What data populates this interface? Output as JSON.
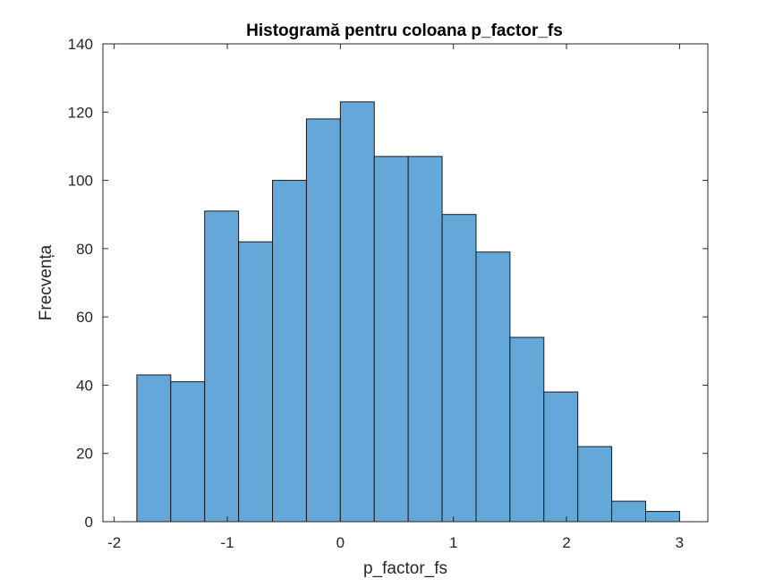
{
  "chart_data": {
    "type": "bar",
    "title": "Histogramă pentru coloana p_factor_fs",
    "xlabel": "p_factor_fs",
    "ylabel": "Frecvența",
    "xlim": [
      -2.1,
      3.25
    ],
    "ylim": [
      0,
      140
    ],
    "xticks": [
      -2,
      -1,
      0,
      1,
      2,
      3
    ],
    "yticks": [
      0,
      20,
      40,
      60,
      80,
      100,
      120,
      140
    ],
    "bin_edges": [
      -1.8,
      -1.5,
      -1.2,
      -0.9,
      -0.6,
      -0.3,
      0.0,
      0.3,
      0.6,
      0.9,
      1.2,
      1.5,
      1.8,
      2.1,
      2.4,
      2.7,
      3.0
    ],
    "values": [
      43,
      41,
      91,
      82,
      100,
      118,
      123,
      107,
      107,
      90,
      79,
      54,
      38,
      22,
      6,
      3
    ],
    "bar_color": "#63a8d8",
    "edge_color": "#1a1a1a",
    "grid": false,
    "legend": null
  }
}
